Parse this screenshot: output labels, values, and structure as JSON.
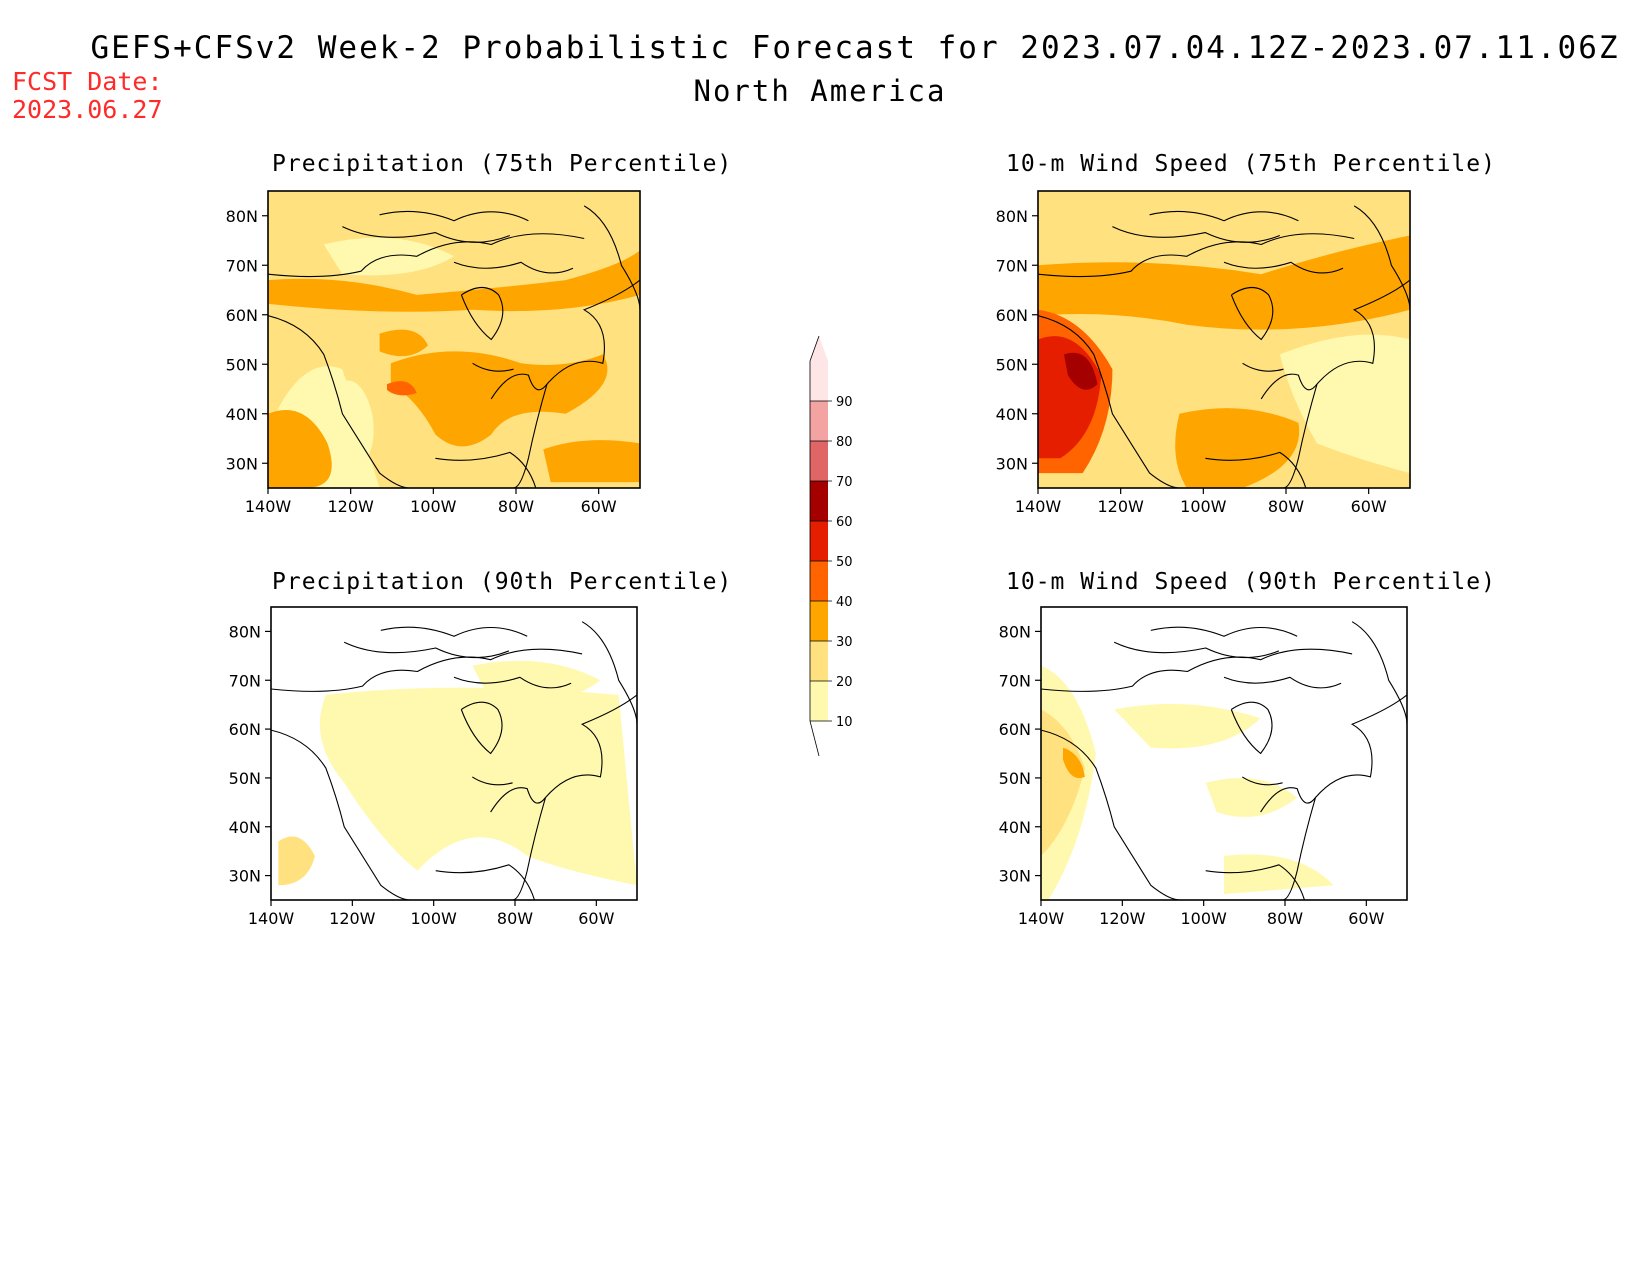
{
  "header": {
    "title": "GEFS+CFSv2 Week-2 Probabilistic Forecast for 2023.07.04.12Z-2023.07.11.06Z",
    "subtitle": "North America",
    "fcst_label": "FCST Date:",
    "fcst_date": "2023.06.27"
  },
  "colorbar": {
    "levels": [
      "10",
      "20",
      "30",
      "40",
      "50",
      "60",
      "70",
      "80",
      "90"
    ],
    "colors": [
      "#fff9b0",
      "#ffe180",
      "#ffa500",
      "#ff6400",
      "#e61e00",
      "#a50000",
      "#e06666",
      "#f4a3a3",
      "#ffe6e6"
    ]
  },
  "axes": {
    "lat_ticks": [
      "80N",
      "70N",
      "60N",
      "50N",
      "40N",
      "30N"
    ],
    "lon_ticks": [
      "140W",
      "120W",
      "100W",
      "80W",
      "60W"
    ],
    "lat_range": [
      25,
      85
    ],
    "lon_range": [
      -140,
      -50
    ]
  },
  "panels": [
    {
      "id": "precip-75",
      "title": "Precipitation (75th Percentile)",
      "background": "#ffe180",
      "regions": [
        {
          "level": "30",
          "color": "#ffa500",
          "area": "central US / Plains and Great Lakes"
        },
        {
          "level": "30",
          "color": "#ffa500",
          "area": "northern Canada band near 65N"
        },
        {
          "level": "30",
          "color": "#ffa500",
          "area": "southwest US / Baja"
        },
        {
          "level": "30",
          "color": "#ffa500",
          "area": "western Atlantic near 30N"
        },
        {
          "level": "40",
          "color": "#ff6400",
          "area": "central Rockies near 45N 108W"
        },
        {
          "level": "10",
          "color": "#fff9b0",
          "area": "Pacific Northwest coast"
        }
      ]
    },
    {
      "id": "wind-75",
      "title": "10-m Wind Speed (75th Percentile)",
      "background": "#ffe180",
      "regions": [
        {
          "level": "60",
          "color": "#a50000",
          "area": "NE Pacific off Pacific Northwest"
        },
        {
          "level": "50",
          "color": "#e61e00",
          "area": "NE Pacific off Pacific Northwest"
        },
        {
          "level": "40",
          "color": "#ff6400",
          "area": "NE Pacific coast"
        },
        {
          "level": "30",
          "color": "#ffa500",
          "area": "Gulf of Mexico and Hudson Bay"
        },
        {
          "level": "10",
          "color": "#fff9b0",
          "area": "eastern Canada and western Atlantic"
        }
      ]
    },
    {
      "id": "precip-90",
      "title": "Precipitation (90th Percentile)",
      "background": "#ffffff",
      "regions": [
        {
          "level": "10",
          "color": "#fff9b0",
          "area": "most of central and eastern North America"
        },
        {
          "level": "20",
          "color": "#ffe180",
          "area": "scattered patches, southwest US"
        }
      ]
    },
    {
      "id": "wind-90",
      "title": "10-m Wind Speed (90th Percentile)",
      "background": "#ffffff",
      "regions": [
        {
          "level": "10",
          "color": "#fff9b0",
          "area": "scattered patches over Canada and US"
        },
        {
          "level": "20",
          "color": "#ffe180",
          "area": "NE Pacific coast"
        },
        {
          "level": "30",
          "color": "#ffa500",
          "area": "off Pacific Northwest near 48N"
        }
      ]
    }
  ]
}
